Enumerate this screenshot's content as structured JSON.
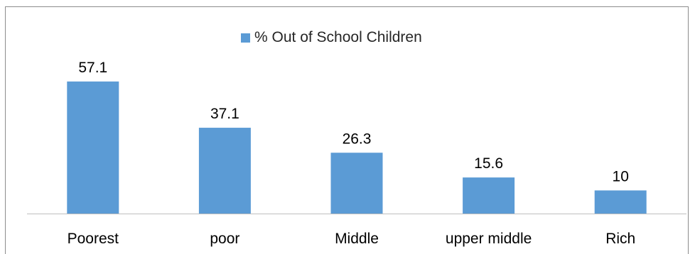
{
  "chart_data": {
    "type": "bar",
    "categories": [
      "Poorest",
      "poor",
      "Middle",
      "upper middle",
      "Rich"
    ],
    "series": [
      {
        "name": "% Out of School Children",
        "values": [
          57.1,
          37.1,
          26.3,
          15.6,
          10
        ],
        "value_labels": [
          "57.1",
          "37.1",
          "26.3",
          "15.6",
          "10"
        ],
        "color": "#5b9bd5"
      }
    ],
    "title": "",
    "xlabel": "",
    "ylabel": "",
    "ylim": [
      0,
      70
    ],
    "grid": false,
    "legend": "top-center",
    "data_labels": true
  }
}
